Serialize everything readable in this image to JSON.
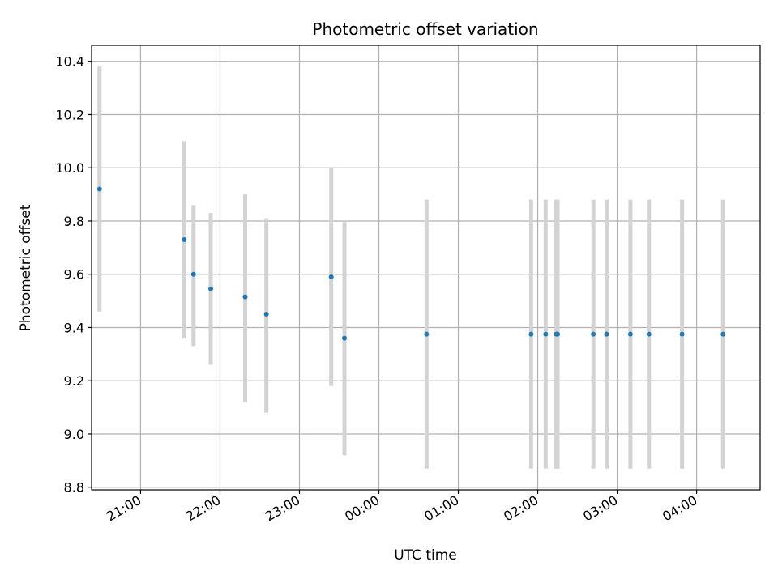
{
  "chart_data": {
    "type": "scatter",
    "title": "Photometric offset variation",
    "xlabel": "UTC time",
    "ylabel": "Photometric offset",
    "x_unit": "UTC time (HH:MM), night crossing midnight",
    "xlim": [
      "20:23",
      "04:48"
    ],
    "ylim": [
      8.79,
      10.46
    ],
    "x_ticks": [
      "21:00",
      "22:00",
      "23:00",
      "00:00",
      "01:00",
      "02:00",
      "03:00",
      "04:00"
    ],
    "y_ticks": [
      8.8,
      9.0,
      9.2,
      9.4,
      9.6,
      9.8,
      10.0,
      10.2,
      10.4
    ],
    "grid": true,
    "legend": "none",
    "series": [
      {
        "marker_color": "#1f77b4",
        "errorbar_color": "#d3d3d3",
        "points": [
          {
            "x": "20:29",
            "y": 9.92,
            "y_low": 9.46,
            "y_high": 10.38
          },
          {
            "x": "21:33",
            "y": 9.73,
            "y_low": 9.36,
            "y_high": 10.1
          },
          {
            "x": "21:40",
            "y": 9.6,
            "y_low": 9.33,
            "y_high": 9.86
          },
          {
            "x": "21:53",
            "y": 9.545,
            "y_low": 9.26,
            "y_high": 9.83
          },
          {
            "x": "22:19",
            "y": 9.515,
            "y_low": 9.12,
            "y_high": 9.9
          },
          {
            "x": "22:35",
            "y": 9.45,
            "y_low": 9.08,
            "y_high": 9.81
          },
          {
            "x": "23:24",
            "y": 9.59,
            "y_low": 9.18,
            "y_high": 10.0
          },
          {
            "x": "23:34",
            "y": 9.36,
            "y_low": 8.92,
            "y_high": 9.8
          },
          {
            "x": "00:36",
            "y": 9.375,
            "y_low": 8.87,
            "y_high": 9.88
          },
          {
            "x": "01:55",
            "y": 9.375,
            "y_low": 8.87,
            "y_high": 9.88
          },
          {
            "x": "02:06",
            "y": 9.375,
            "y_low": 8.87,
            "y_high": 9.88
          },
          {
            "x": "02:14",
            "y": 9.375,
            "y_low": 8.87,
            "y_high": 9.88
          },
          {
            "x": "02:15",
            "y": 9.375,
            "y_low": 8.87,
            "y_high": 9.88
          },
          {
            "x": "02:42",
            "y": 9.375,
            "y_low": 8.87,
            "y_high": 9.88
          },
          {
            "x": "02:52",
            "y": 9.375,
            "y_low": 8.87,
            "y_high": 9.88
          },
          {
            "x": "03:10",
            "y": 9.375,
            "y_low": 8.87,
            "y_high": 9.88
          },
          {
            "x": "03:24",
            "y": 9.375,
            "y_low": 8.87,
            "y_high": 9.88
          },
          {
            "x": "03:49",
            "y": 9.375,
            "y_low": 8.87,
            "y_high": 9.88
          },
          {
            "x": "04:20",
            "y": 9.375,
            "y_low": 8.87,
            "y_high": 9.88
          }
        ]
      }
    ]
  }
}
